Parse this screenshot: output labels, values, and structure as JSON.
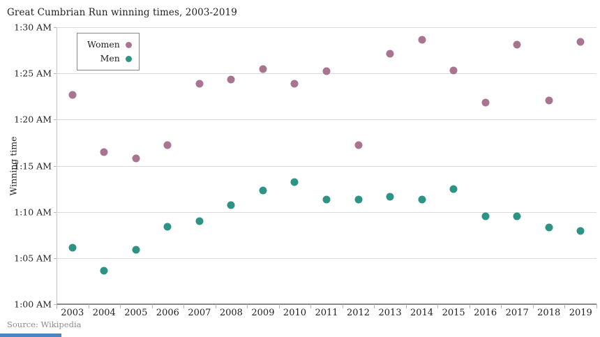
{
  "title": "Great Cumbrian Run winning times, 2003-2019",
  "source": "Source: Wikipedia",
  "y_axis_title": "Winning time",
  "colors": {
    "women": "#a9748f",
    "men": "#2d9384",
    "gridline": "#dadada",
    "axis": "#8c8c8c"
  },
  "chart_data": {
    "type": "scatter",
    "title": "Great Cumbrian Run winning times, 2003-2019",
    "xlabel": "",
    "ylabel": "Winning time",
    "x": [
      2003,
      2004,
      2005,
      2006,
      2007,
      2008,
      2009,
      2010,
      2011,
      2012,
      2013,
      2014,
      2015,
      2016,
      2017,
      2018,
      2019
    ],
    "y_ticks": [
      {
        "label": "1:00 AM",
        "minutes_after_1am": 0
      },
      {
        "label": "1:05 AM",
        "minutes_after_1am": 5
      },
      {
        "label": "1:10 AM",
        "minutes_after_1am": 10
      },
      {
        "label": "1:15 AM",
        "minutes_after_1am": 15
      },
      {
        "label": "1:20 AM",
        "minutes_after_1am": 20
      },
      {
        "label": "1:25 AM",
        "minutes_after_1am": 25
      },
      {
        "label": "1:30 AM",
        "minutes_after_1am": 30
      }
    ],
    "ylim_minutes_after_1am": [
      0,
      30
    ],
    "grid": "horizontal",
    "legend_position": "top-left",
    "series": [
      {
        "name": "Women",
        "color": "#a9748f",
        "minutes_after_1am": [
          22.7,
          16.5,
          15.8,
          17.2,
          23.9,
          24.35,
          25.45,
          23.85,
          25.25,
          17.2,
          27.1,
          28.65,
          25.3,
          21.85,
          28.1,
          22.1,
          28.4
        ],
        "winning_times": [
          "1:22:42",
          "1:16:30",
          "1:15:48",
          "1:17:12",
          "1:23:54",
          "1:24:21",
          "1:25:27",
          "1:23:51",
          "1:25:15",
          "1:17:12",
          "1:27:06",
          "1:28:39",
          "1:25:18",
          "1:21:51",
          "1:28:06",
          "1:22:06",
          "1:28:24"
        ]
      },
      {
        "name": "Men",
        "color": "#2d9384",
        "minutes_after_1am": [
          6.1,
          3.65,
          5.9,
          8.4,
          9.0,
          10.7,
          12.35,
          13.25,
          11.3,
          11.3,
          11.65,
          11.35,
          12.45,
          9.55,
          9.55,
          8.3,
          7.95
        ],
        "winning_times": [
          "1:06:06",
          "1:03:39",
          "1:05:54",
          "1:08:24",
          "1:09:00",
          "1:10:42",
          "1:12:21",
          "1:13:15",
          "1:11:18",
          "1:11:18",
          "1:11:39",
          "1:11:21",
          "1:12:27",
          "1:09:33",
          "1:09:33",
          "1:08:18",
          "1:07:57"
        ]
      }
    ]
  }
}
